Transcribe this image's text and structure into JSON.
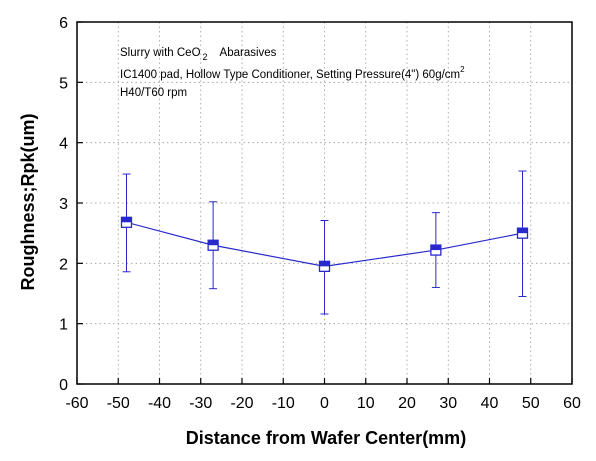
{
  "chart_data": {
    "type": "scatter",
    "xlabel": "Distance from Wafer Center(mm)",
    "ylabel": "Roughness;Rpk(um)",
    "xlim": [
      -60,
      60
    ],
    "ylim": [
      0,
      6
    ],
    "xticks": [
      -60,
      -50,
      -40,
      -30,
      -20,
      -10,
      0,
      10,
      20,
      30,
      40,
      50,
      60
    ],
    "yticks": [
      0,
      1,
      2,
      3,
      4,
      5,
      6
    ],
    "grid": "dotted",
    "series_color": "#2a2acc",
    "connect_points": true,
    "points": [
      {
        "x": -48,
        "y": 2.68,
        "y_low": 1.86,
        "y_high": 3.48
      },
      {
        "x": -27,
        "y": 2.3,
        "y_low": 1.58,
        "y_high": 3.02
      },
      {
        "x": 0,
        "y": 1.95,
        "y_low": 1.16,
        "y_high": 2.71
      },
      {
        "x": 27,
        "y": 2.22,
        "y_low": 1.6,
        "y_high": 2.84
      },
      {
        "x": 48,
        "y": 2.5,
        "y_low": 1.45,
        "y_high": 3.53
      }
    ],
    "annotations": {
      "line1_prefix": "Slurry with CeO",
      "line1_sub": "2",
      "line1_suffix": "Abarasives",
      "line2_main": "IC1400 pad, Hollow Type Conditioner, Setting Pressure(4\") 60g/cm",
      "line2_sup": "2",
      "line3": "H40/T60 rpm"
    }
  }
}
